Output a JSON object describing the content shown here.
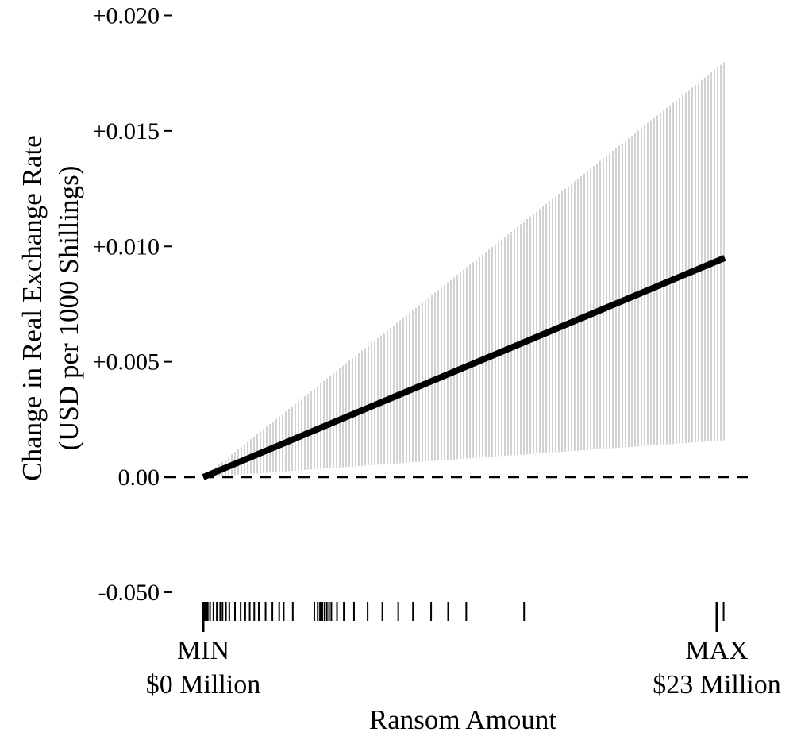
{
  "chart_data": {
    "type": "area",
    "title": "",
    "xlabel": "Ransom Amount",
    "ylabel": "Change in Real Exchange Rate",
    "ylabel_sub": "(USD per 1000 Shillings)",
    "x_range_millions": [
      0,
      23
    ],
    "x_end_labels": {
      "min_word": "MIN",
      "min_value": "$0 Million",
      "max_word": "MAX",
      "max_value": "$23 Million"
    },
    "y_ticks": [
      {
        "value": -0.05,
        "label": "-0.050"
      },
      {
        "value": 0.0,
        "label": "0.00"
      },
      {
        "value": 0.005,
        "label": "+0.005"
      },
      {
        "value": 0.01,
        "label": "+0.010"
      },
      {
        "value": 0.015,
        "label": "+0.015"
      },
      {
        "value": 0.02,
        "label": "+0.020"
      }
    ],
    "y_axis_break": "the axis jumps from 0.00 down to -0.050 (non-linear spacing)",
    "series": [
      {
        "role": "estimate",
        "x": [
          0,
          23
        ],
        "y": [
          0.0,
          0.0095
        ]
      }
    ],
    "confidence_band": {
      "x": [
        0,
        23
      ],
      "lower": [
        0.0,
        0.0016
      ],
      "upper": [
        0.0,
        0.018
      ]
    },
    "reference_line": {
      "y": 0.0,
      "style": "dashed"
    },
    "rug": {
      "description": "observed ransom amounts shown as tick marks above the x axis",
      "x_millions": [
        0.0,
        0.05,
        0.1,
        0.15,
        0.2,
        0.3,
        0.45,
        0.6,
        0.75,
        0.85,
        1.0,
        1.15,
        1.4,
        1.65,
        1.85,
        2.05,
        2.25,
        2.45,
        2.75,
        3.05,
        3.35,
        3.55,
        3.95,
        4.9,
        5.05,
        5.15,
        5.25,
        5.35,
        5.45,
        5.55,
        5.65,
        5.9,
        6.2,
        6.65,
        7.25,
        7.9,
        8.6,
        9.25,
        10.05,
        10.8,
        11.6,
        14.15,
        22.95
      ]
    },
    "grid": false,
    "legend": "none",
    "colors": {
      "estimate_line": "#000000",
      "band_hatch": "#b4b4b4",
      "reference_line": "#000000"
    }
  }
}
